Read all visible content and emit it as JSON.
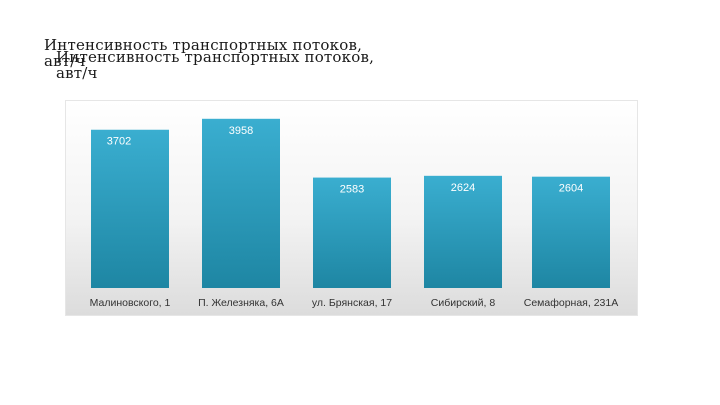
{
  "title_line1": "Интенсивность транспортных потоков,",
  "title_line2": "авт/ч",
  "colors": {
    "bar_top": "#3aaed0",
    "bar_bottom": "#1e86a3",
    "value_label": "#ffffff",
    "tick_label": "#333333"
  },
  "chart_data": {
    "type": "bar",
    "title": "Интенсивность транспортных потоков, авт/ч",
    "xlabel": "",
    "ylabel": "",
    "categories": [
      "Малиновского, 1",
      "П. Железняка, 6А",
      "ул. Брянская, 17",
      "Сибирский, 8",
      "Семафорная, 231А"
    ],
    "values": [
      3702,
      3958,
      2583,
      2624,
      2604
    ],
    "ylim": [
      0,
      4000
    ],
    "grid": false,
    "data_labels": true
  }
}
